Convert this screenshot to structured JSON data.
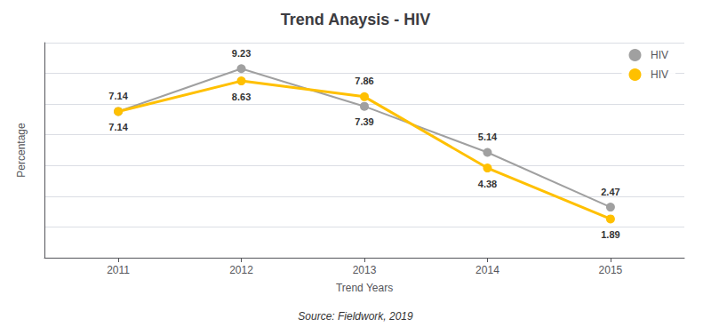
{
  "chart_data": {
    "type": "line",
    "title": "Trend Anaysis - HIV",
    "xlabel": "Trend Years",
    "ylabel": "Percentage",
    "annotations": [
      "Source: Fieldwork, 2019"
    ],
    "x": [
      2011,
      2012,
      2013,
      2014,
      2015
    ],
    "series": [
      {
        "name": "HIV",
        "color": "#a0a0a0",
        "values": [
          7.14,
          9.23,
          7.39,
          5.14,
          2.47
        ]
      },
      {
        "name": "HIV",
        "color": "#FFC000",
        "values": [
          7.14,
          8.63,
          7.86,
          4.38,
          1.89
        ]
      }
    ],
    "xlim": [
      2010.4,
      2015.6
    ],
    "xticks": [
      2011,
      2012,
      2013,
      2014,
      2015
    ],
    "ylim": [
      0,
      10.5
    ],
    "yticks": [
      0,
      1.5,
      3,
      4.5,
      6,
      7.5,
      9,
      10.5
    ],
    "grid": true,
    "legend": "upper right",
    "data_labels": true,
    "tick_labels": "x",
    "marker": "circle"
  }
}
